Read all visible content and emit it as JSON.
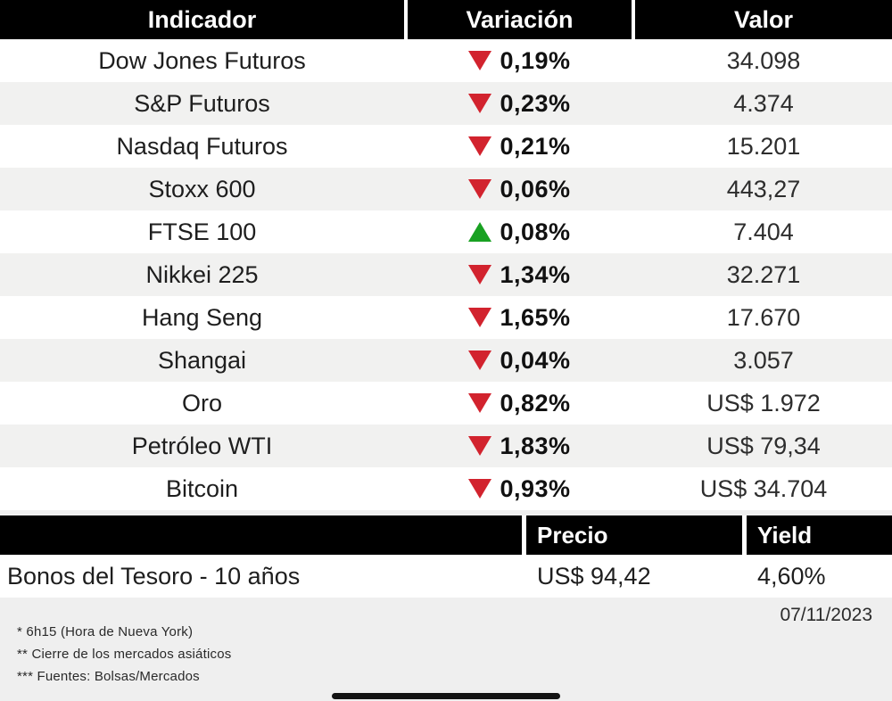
{
  "colors": {
    "down": "#d2232e",
    "up": "#19a122",
    "header_bg": "#000000",
    "row_alt_bg": "#f1f1f0",
    "page_bg": "#efefef"
  },
  "chart_data": {
    "type": "table",
    "tables": [
      {
        "columns": [
          "Indicador",
          "Variación",
          "Valor"
        ],
        "rows": [
          {
            "indicator": "Dow Jones Futuros",
            "direction": "down",
            "variation": "0,19%",
            "value": "34.098"
          },
          {
            "indicator": "S&P Futuros",
            "direction": "down",
            "variation": "0,23%",
            "value": "4.374"
          },
          {
            "indicator": "Nasdaq Futuros",
            "direction": "down",
            "variation": "0,21%",
            "value": "15.201"
          },
          {
            "indicator": "Stoxx 600",
            "direction": "down",
            "variation": "0,06%",
            "value": "443,27"
          },
          {
            "indicator": "FTSE 100",
            "direction": "up",
            "variation": "0,08%",
            "value": "7.404"
          },
          {
            "indicator": "Nikkei 225",
            "direction": "down",
            "variation": "1,34%",
            "value": "32.271"
          },
          {
            "indicator": "Hang Seng",
            "direction": "down",
            "variation": "1,65%",
            "value": "17.670"
          },
          {
            "indicator": "Shangai",
            "direction": "down",
            "variation": "0,04%",
            "value": "3.057"
          },
          {
            "indicator": "Oro",
            "direction": "down",
            "variation": "0,82%",
            "value": "US$ 1.972"
          },
          {
            "indicator": "Petróleo WTI",
            "direction": "down",
            "variation": "1,83%",
            "value": "US$ 79,34"
          },
          {
            "indicator": "Bitcoin",
            "direction": "down",
            "variation": "0,93%",
            "value": "US$ 34.704"
          }
        ]
      },
      {
        "columns": [
          "",
          "Precio",
          "Yield"
        ],
        "rows": [
          {
            "label": "Bonos del Tesoro - 10 años",
            "price": "US$ 94,42",
            "yield": "4,60%"
          }
        ]
      }
    ],
    "notes": [
      "* 6h15 (Hora de Nueva York)",
      "** Cierre de los mercados asiáticos",
      "*** Fuentes: Bolsas/Mercados"
    ],
    "date": "07/11/2023"
  }
}
